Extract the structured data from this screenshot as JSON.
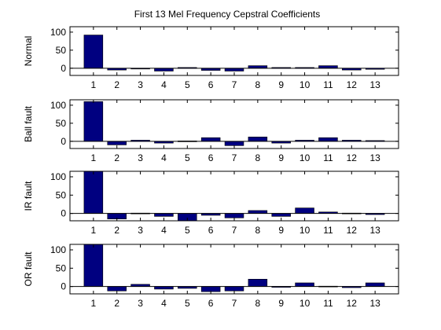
{
  "title": "First 13 Mel Frequency Cepstral Coefficients",
  "bar_color": "#000080",
  "chart_data": [
    {
      "type": "bar",
      "ylabel": "Normal",
      "categories": [
        "1",
        "2",
        "3",
        "4",
        "5",
        "6",
        "7",
        "8",
        "9",
        "10",
        "11",
        "12",
        "13"
      ],
      "values": [
        92,
        -5,
        0,
        -8,
        2,
        -6,
        -8,
        7,
        2,
        2,
        7,
        -5,
        -3
      ],
      "ylim": [
        -20,
        115
      ],
      "yticks": [
        0,
        50,
        100
      ]
    },
    {
      "type": "bar",
      "ylabel": "Ball fault",
      "categories": [
        "1",
        "2",
        "3",
        "4",
        "5",
        "6",
        "7",
        "8",
        "9",
        "10",
        "11",
        "12",
        "13"
      ],
      "values": [
        110,
        -10,
        3,
        -5,
        1,
        10,
        -12,
        12,
        -5,
        3,
        10,
        3,
        2
      ],
      "ylim": [
        -20,
        115
      ],
      "yticks": [
        0,
        50,
        100
      ]
    },
    {
      "type": "bar",
      "ylabel": "IR fault",
      "categories": [
        "1",
        "2",
        "3",
        "4",
        "5",
        "6",
        "7",
        "8",
        "9",
        "10",
        "11",
        "12",
        "13"
      ],
      "values": [
        115,
        -15,
        1,
        -8,
        -20,
        -5,
        -12,
        8,
        -8,
        15,
        4,
        1,
        -3
      ],
      "ylim": [
        -20,
        115
      ],
      "yticks": [
        0,
        50,
        100
      ]
    },
    {
      "type": "bar",
      "ylabel": "OR fault",
      "categories": [
        "1",
        "2",
        "3",
        "4",
        "5",
        "6",
        "7",
        "8",
        "9",
        "10",
        "11",
        "12",
        "13"
      ],
      "values": [
        115,
        -12,
        6,
        -7,
        -5,
        -14,
        -12,
        20,
        0,
        10,
        1,
        -3,
        10
      ],
      "ylim": [
        -20,
        115
      ],
      "yticks": [
        0,
        50,
        100
      ]
    }
  ]
}
